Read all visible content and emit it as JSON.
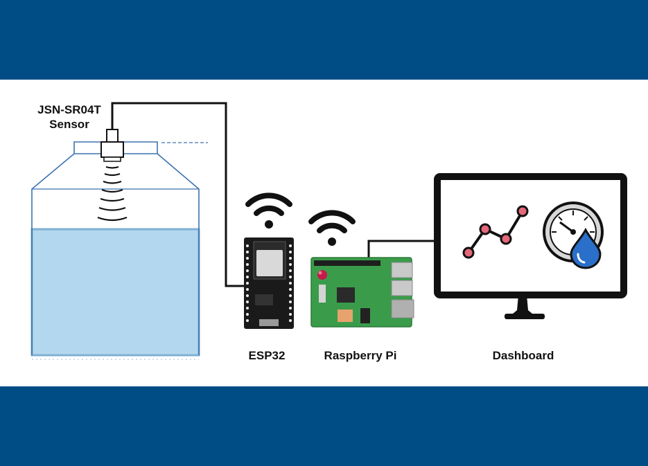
{
  "colors": {
    "band": "#004d85",
    "water": "#b3d7ee",
    "water_edge": "#7fb0d3",
    "tank_outline": "#3c72b0",
    "wire": "#111111",
    "pcb_green": "#3a9c4a",
    "esp_board": "#1a1a1a",
    "chart_dot": "#e4677a",
    "drop": "#2a6fc9"
  },
  "labels": {
    "sensor_line1": "JSN-SR04T",
    "sensor_line2": "Sensor",
    "esp32": "ESP32",
    "raspberry_pi": "Raspberry Pi",
    "dashboard": "Dashboard"
  },
  "icons": [
    "wifi-icon",
    "wifi-icon",
    "line-chart-icon",
    "gauge-icon",
    "water-drop-icon"
  ]
}
